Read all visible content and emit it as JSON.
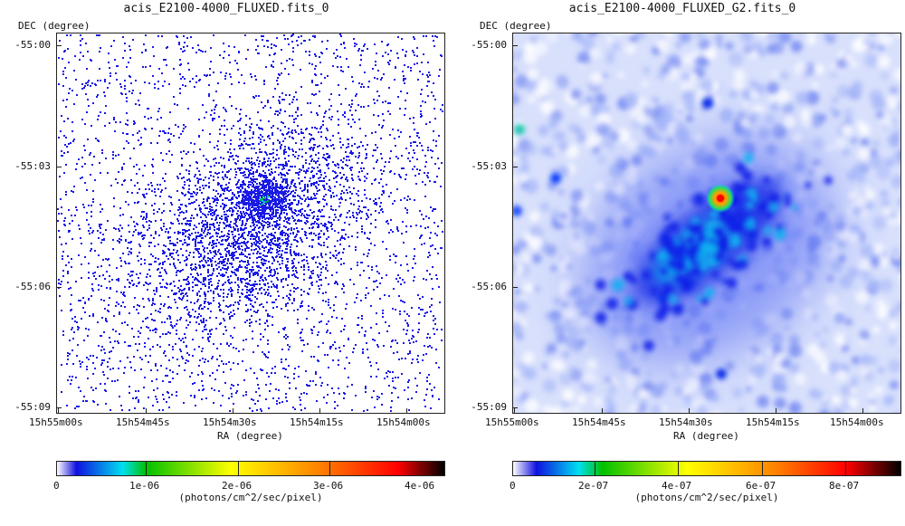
{
  "left": {
    "title": "acis_E2100-4000_FLUXED.fits_0",
    "dec_label": "DEC (degree)",
    "ra_label": "RA (degree)",
    "y_ticks": [
      "-55:00",
      "-55:03",
      "-55:06",
      "-55:09"
    ],
    "x_ticks": [
      "15h55m00s",
      "15h54m45s",
      "15h54m30s",
      "15h54m15s",
      "15h54m00s"
    ],
    "colorbar_labels": [
      "0",
      "1e-06",
      "2e-06",
      "3e-06",
      "4e-06"
    ],
    "colorbar_unit": "(photons/cm^2/sec/pixel)"
  },
  "right": {
    "title": "acis_E2100-4000_FLUXED_G2.fits_0",
    "dec_label": "DEC (degree)",
    "ra_label": "RA (degree)",
    "y_ticks": [
      "-55:00",
      "-55:03",
      "-55:06",
      "-55:09"
    ],
    "x_ticks": [
      "15h55m00s",
      "15h54m45s",
      "15h54m30s",
      "15h54m15s",
      "15h54m00s"
    ],
    "colorbar_labels": [
      "0",
      "2e-07",
      "4e-07",
      "6e-07",
      "8e-07"
    ],
    "colorbar_unit": "(photons/cm^2/sec/pixel)"
  },
  "colors": {
    "cmap": [
      "#ffffff",
      "#1010e0",
      "#00e0f0",
      "#00c000",
      "#ffff00",
      "#ff8000",
      "#ff0000",
      "#000000"
    ],
    "sparse_pixel": "#1a1ae6",
    "smooth_bg": "#d8e0fc"
  }
}
